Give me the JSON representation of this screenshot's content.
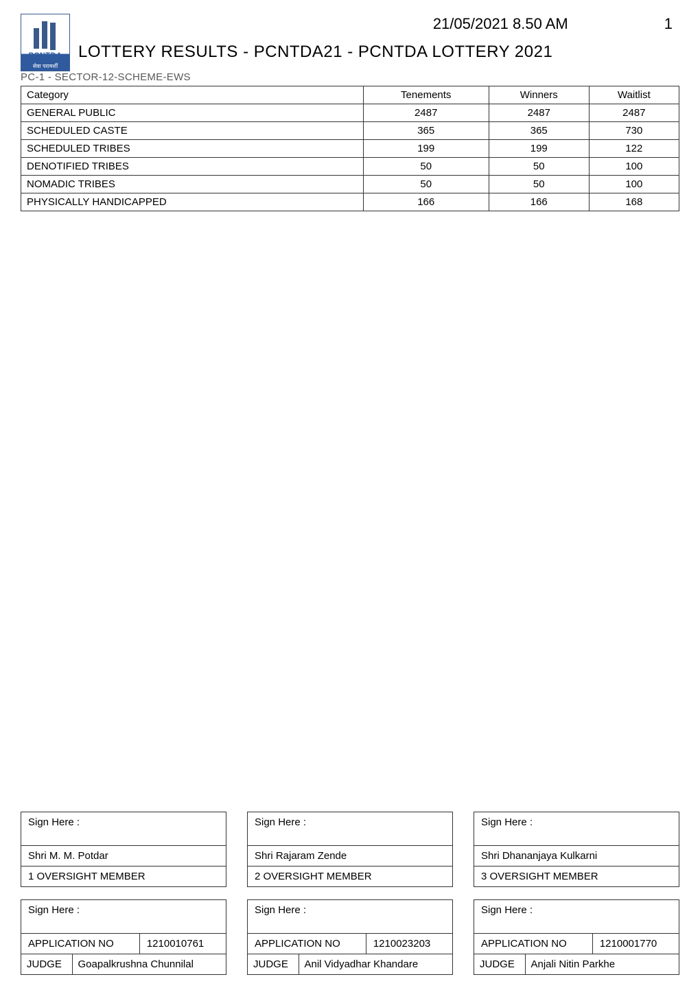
{
  "header": {
    "datetime": "21/05/2021 8.50 AM",
    "page_number": "1",
    "logo_acronym": "PCNTDA",
    "logo_subtext": "सेवा परामर्शी",
    "title": "LOTTERY RESULTS - PCNTDA21 - PCNTDA LOTTERY 2021",
    "subtitle": "PC-1 - SECTOR-12-SCHEME-EWS"
  },
  "table": {
    "columns": {
      "category": "Category",
      "tenements": "Tenements",
      "winners": "Winners",
      "waitlist": "Waitlist"
    },
    "rows": [
      {
        "category": "GENERAL PUBLIC",
        "tenements": "2487",
        "winners": "2487",
        "waitlist": "2487"
      },
      {
        "category": "SCHEDULED CASTE",
        "tenements": "365",
        "winners": "365",
        "waitlist": "730"
      },
      {
        "category": "SCHEDULED TRIBES",
        "tenements": "199",
        "winners": "199",
        "waitlist": "122"
      },
      {
        "category": "DENOTIFIED TRIBES",
        "tenements": "50",
        "winners": "50",
        "waitlist": "100"
      },
      {
        "category": "NOMADIC TRIBES",
        "tenements": "50",
        "winners": "50",
        "waitlist": "100"
      },
      {
        "category": "PHYSICALLY HANDICAPPED",
        "tenements": "166",
        "winners": "166",
        "waitlist": "168"
      }
    ]
  },
  "signatures": {
    "sign_here_label": "Sign Here :",
    "oversight": [
      {
        "name": "Shri M. M. Potdar",
        "role": "1 OVERSIGHT MEMBER"
      },
      {
        "name": "Shri Rajaram Zende",
        "role": "2 OVERSIGHT MEMBER"
      },
      {
        "name": "Shri Dhananjaya Kulkarni",
        "role": "3 OVERSIGHT MEMBER"
      }
    ],
    "application_no_label": "APPLICATION NO",
    "judge_label": "JUDGE",
    "judges": [
      {
        "application_no": "1210010761",
        "name": "Goapalkrushna Chunnilal"
      },
      {
        "application_no": "1210023203",
        "name": "Anil Vidyadhar Khandare"
      },
      {
        "application_no": "1210001770",
        "name": "Anjali Nitin Parkhe"
      }
    ]
  }
}
